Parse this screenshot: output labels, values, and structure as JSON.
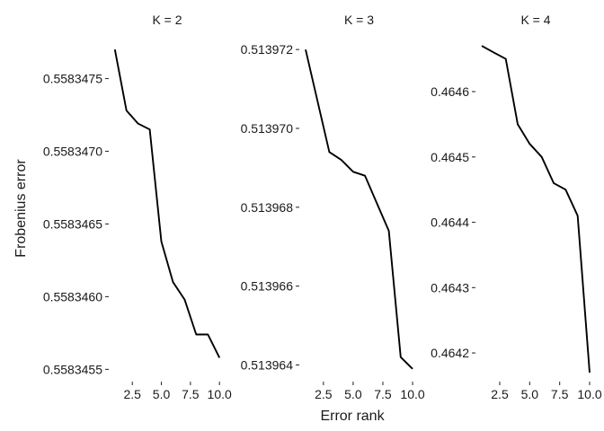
{
  "chart_data": {
    "type": "line",
    "xlabel": "Error rank",
    "ylabel": "Frobenius error",
    "panels": [
      {
        "title": "K = 2",
        "x": [
          1,
          2,
          3,
          4,
          5,
          6,
          7,
          8,
          9,
          10
        ],
        "y": [
          0.5583477,
          0.55834728,
          0.55834719,
          0.55834715,
          0.55834638,
          0.5583461,
          0.55834598,
          0.55834574,
          0.55834574,
          0.55834558
        ],
        "xlim": [
          0.55,
          10.45
        ],
        "ylim": [
          0.558345422,
          0.558347781
        ],
        "xticks": [
          2.5,
          5.0,
          7.5,
          10.0
        ],
        "xtick_labels": [
          "2.5",
          "5.0",
          "7.5",
          "10.0"
        ],
        "yticks": [
          0.5583455,
          0.558346,
          0.5583465,
          0.558347,
          0.5583475
        ],
        "ytick_labels": [
          "0.5583455",
          "0.5583460",
          "0.5583465",
          "0.5583470",
          "0.5583475"
        ]
      },
      {
        "title": "K = 3",
        "x": [
          1,
          2,
          3,
          4,
          5,
          6,
          7,
          8,
          9,
          10
        ],
        "y": [
          0.513972,
          0.5139707,
          0.5139694,
          0.5139692,
          0.5139689,
          0.5139688,
          0.5139681,
          0.5139674,
          0.5139642,
          0.5139639
        ],
        "xlim": [
          0.55,
          10.45
        ],
        "ylim": [
          0.5139636,
          0.5139723
        ],
        "xticks": [
          2.5,
          5.0,
          7.5,
          10.0
        ],
        "xtick_labels": [
          "2.5",
          "5.0",
          "7.5",
          "10.0"
        ],
        "yticks": [
          0.513964,
          0.513966,
          0.513968,
          0.51397,
          0.513972
        ],
        "ytick_labels": [
          "0.513964",
          "0.513966",
          "0.513968",
          "0.513970",
          "0.513972"
        ]
      },
      {
        "title": "K = 4",
        "x": [
          1,
          2,
          3,
          4,
          5,
          6,
          7,
          8,
          9,
          10
        ],
        "y": [
          0.46467,
          0.46466,
          0.46465,
          0.46455,
          0.46452,
          0.4645,
          0.46446,
          0.46445,
          0.46441,
          0.46417
        ],
        "xlim": [
          0.55,
          10.45
        ],
        "ylim": [
          0.4641575,
          0.4646825
        ],
        "xticks": [
          2.5,
          5.0,
          7.5,
          10.0
        ],
        "xtick_labels": [
          "2.5",
          "5.0",
          "7.5",
          "10.0"
        ],
        "yticks": [
          0.4642,
          0.4643,
          0.4644,
          0.4645,
          0.4646
        ],
        "ytick_labels": [
          "0.4642",
          "0.4643",
          "0.4644",
          "0.4645",
          "0.4646"
        ]
      }
    ],
    "grid": false,
    "legend": "none",
    "colors": {
      "line": "#000000",
      "text": "#1a1a1a",
      "background": "#ffffff"
    }
  }
}
